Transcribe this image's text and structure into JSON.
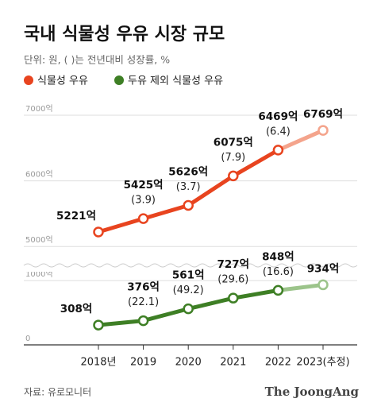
{
  "chart_data": {
    "type": "line",
    "title": "국내 식물성 우유 시장 규모",
    "subtitle": "단위: 원, ( )는 전년대비 성장률, %",
    "categories": [
      "2018년",
      "2019",
      "2020",
      "2021",
      "2022",
      "2023(추정)"
    ],
    "series": [
      {
        "name": "식물성 우유",
        "color": "#e8441f",
        "estimate_color": "#f4a48c",
        "values": [
          5221,
          5425,
          5626,
          6075,
          6469,
          6769
        ],
        "value_labels": [
          "5221억",
          "5425억",
          "5626억",
          "6075억",
          "6469억",
          "6769억"
        ],
        "growth_labels": [
          null,
          "(3.9)",
          "(3.7)",
          "(7.9)",
          "(6.4)",
          null
        ]
      },
      {
        "name": "두유 제외 식물성 우유",
        "color": "#3e7f25",
        "estimate_color": "#9cc48b",
        "axis": "y2",
        "values": [
          308,
          376,
          561,
          727,
          848,
          934
        ],
        "value_labels": [
          "308억",
          "376억",
          "561억",
          "727억",
          "848억",
          "934억"
        ],
        "growth_labels": [
          null,
          "(22.1)",
          "(49.2)",
          "(29.6)",
          "(16.6)",
          null
        ]
      }
    ],
    "ylim": [
      4700,
      7000
    ],
    "yticks": [
      {
        "value": 5000,
        "label": "5000억"
      },
      {
        "value": 6000,
        "label": "6000억"
      },
      {
        "value": 7000,
        "label": "7000억"
      }
    ],
    "y2lim": [
      0,
      1100
    ],
    "y2ticks": [
      0,
      {
        "value": 1000,
        "label": "1000억"
      }
    ],
    "grid": true,
    "source": "자료: 유로모니터",
    "brand": "The JoongAng"
  }
}
